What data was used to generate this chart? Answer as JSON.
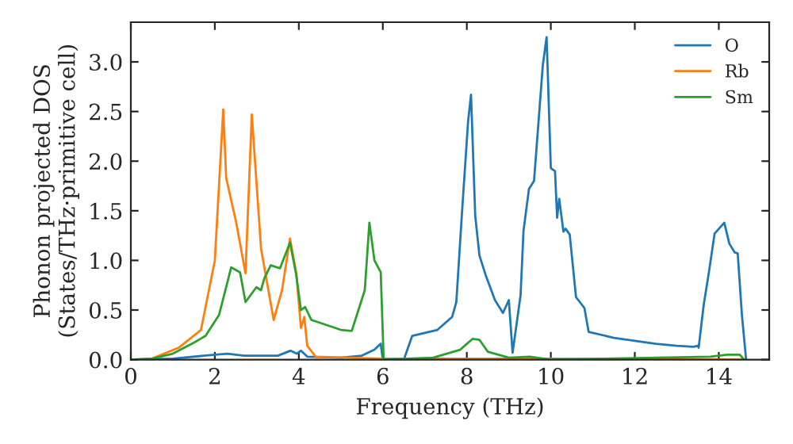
{
  "chart_data": {
    "type": "line",
    "xlabel": "Frequency (THz)",
    "ylabel": "Phonon projected DOS\n(States/THz·primitive cell)",
    "xlim": [
      0,
      15.2
    ],
    "ylim": [
      0,
      3.4
    ],
    "xticks": [
      0,
      2,
      4,
      6,
      8,
      10,
      12,
      14
    ],
    "yticks": [
      {
        "value": 0,
        "label": "0.0"
      },
      {
        "value": 0.5,
        "label": "0.5"
      },
      {
        "value": 1,
        "label": "1.0"
      },
      {
        "value": 1.5,
        "label": "1.5"
      },
      {
        "value": 2,
        "label": "2.0"
      },
      {
        "value": 2.5,
        "label": "2.5"
      },
      {
        "value": 3,
        "label": "3.0"
      }
    ],
    "legend": "top right",
    "grid": false,
    "series": [
      {
        "name": "O",
        "color": "#1f77b4",
        "x": [
          0,
          1,
          2,
          2.3,
          2.7,
          3.5,
          3.8,
          3.95,
          4.05,
          4.2,
          5,
          5.5,
          5.8,
          5.95,
          6.0,
          6.5,
          6.7,
          7.3,
          7.65,
          7.75,
          7.88,
          8.03,
          8.1,
          8.2,
          8.3,
          8.45,
          8.67,
          8.86,
          9.0,
          9.09,
          9.28,
          9.35,
          9.48,
          9.6,
          9.81,
          9.9,
          10.0,
          10.1,
          10.15,
          10.2,
          10.3,
          10.35,
          10.45,
          10.6,
          10.8,
          10.9,
          11.5,
          12,
          12.5,
          13,
          13.4,
          13.5,
          13.52,
          13.64,
          13.76,
          13.9,
          14.13,
          14.25,
          14.38,
          14.45,
          14.55,
          14.65
        ],
        "values": [
          0,
          0.01,
          0.05,
          0.06,
          0.04,
          0.04,
          0.09,
          0.06,
          0.09,
          0.03,
          0.02,
          0.04,
          0.1,
          0.16,
          0,
          0,
          0.24,
          0.3,
          0.43,
          0.58,
          1.45,
          2.4,
          2.67,
          1.45,
          1.05,
          0.85,
          0.6,
          0.47,
          0.6,
          0.07,
          0.65,
          1.3,
          1.72,
          1.8,
          2.97,
          3.25,
          1.93,
          1.9,
          1.43,
          1.62,
          1.29,
          1.32,
          1.26,
          0.63,
          0.52,
          0.28,
          0.22,
          0.19,
          0.16,
          0.14,
          0.13,
          0.14,
          0.12,
          0.55,
          0.87,
          1.27,
          1.38,
          1.17,
          1.08,
          1.07,
          0.45,
          0
        ]
      },
      {
        "name": "Rb",
        "color": "#ff7f0e",
        "x": [
          0,
          0.5,
          1.14,
          1.67,
          2.0,
          2.2,
          2.27,
          2.5,
          2.73,
          2.88,
          3.1,
          3.4,
          3.6,
          3.79,
          3.94,
          4.05,
          4.13,
          4.2,
          4.4,
          6,
          10,
          14.6
        ],
        "values": [
          0,
          0.01,
          0.12,
          0.3,
          1.0,
          2.52,
          1.83,
          1.4,
          0.87,
          2.47,
          1.12,
          0.4,
          0.7,
          1.22,
          0.87,
          0.32,
          0.43,
          0.14,
          0.03,
          0.01,
          0.01,
          0
        ]
      },
      {
        "name": "Sm",
        "color": "#2ca02c",
        "x": [
          0,
          0.5,
          1.0,
          1.5,
          1.78,
          2.1,
          2.39,
          2.6,
          2.73,
          2.99,
          3.1,
          3.18,
          3.33,
          3.55,
          3.79,
          3.94,
          4.05,
          4.15,
          4.3,
          5.0,
          5.26,
          5.57,
          5.68,
          5.8,
          5.95,
          6.02,
          7.2,
          7.84,
          8.14,
          8.3,
          8.5,
          9.0,
          9.5,
          10,
          13.8,
          14.2,
          14.5,
          14.6
        ],
        "values": [
          0,
          0.01,
          0.06,
          0.17,
          0.24,
          0.45,
          0.93,
          0.88,
          0.58,
          0.73,
          0.7,
          0.82,
          0.95,
          0.92,
          1.18,
          0.85,
          0.5,
          0.53,
          0.4,
          0.3,
          0.29,
          0.7,
          1.38,
          1.0,
          0.88,
          0,
          0.02,
          0.1,
          0.21,
          0.2,
          0.08,
          0.02,
          0.03,
          0,
          0.03,
          0.05,
          0.05,
          0
        ]
      }
    ]
  }
}
